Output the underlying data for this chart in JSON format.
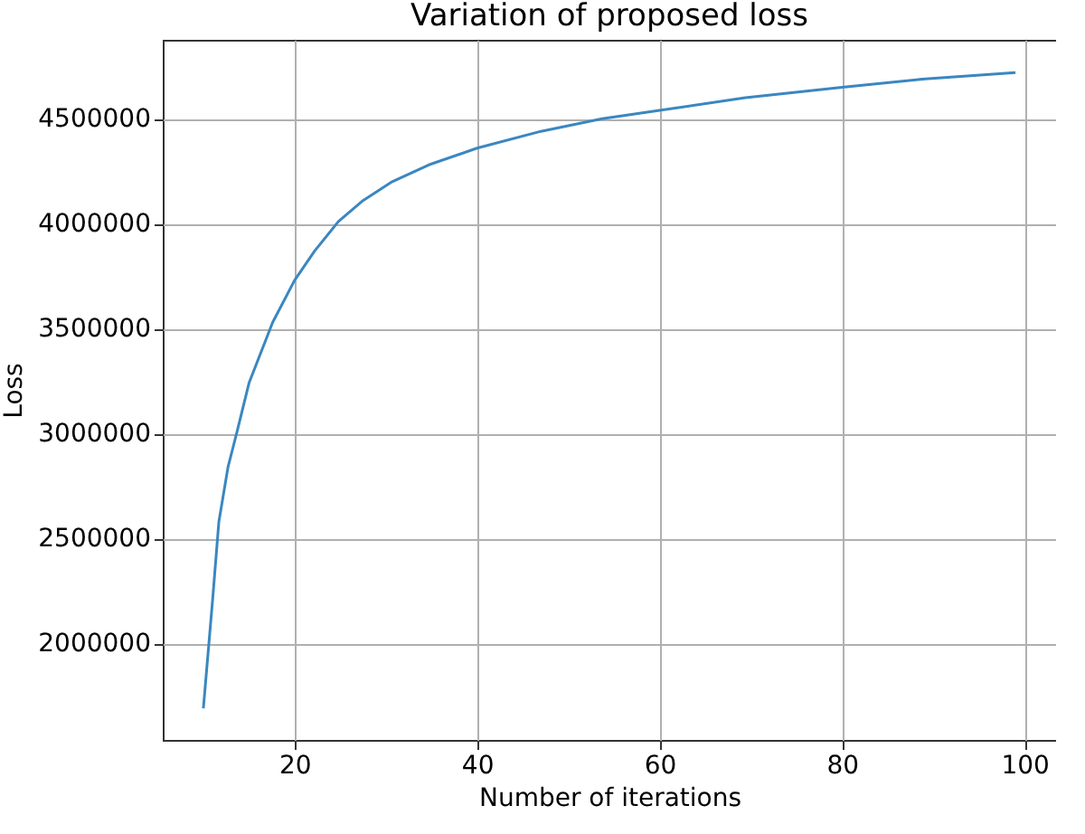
{
  "chart_data": {
    "type": "line",
    "title": "Variation of proposed loss",
    "xlabel": "Number of iterations",
    "ylabel": "Loss",
    "x": [
      10,
      11,
      11.7,
      12.7,
      13.7,
      15,
      17.6,
      20,
      22.2,
      24.8,
      27.5,
      30.7,
      34.7,
      40,
      47,
      53.7,
      60,
      69.4,
      80,
      89.1,
      99
    ],
    "series": [
      {
        "color": "#3a87c0",
        "values": [
          1690000,
          2200000,
          2580000,
          2840000,
          3010000,
          3240000,
          3530000,
          3730000,
          3870000,
          4010000,
          4110000,
          4200000,
          4280000,
          4360000,
          4440000,
          4500000,
          4540000,
          4600000,
          4650000,
          4690000,
          4720000
        ]
      }
    ],
    "xlim": [
      5.55,
      103.45
    ],
    "xticks": [
      20,
      40,
      60,
      80,
      100
    ],
    "ylim": [
      1540000,
      4876000
    ],
    "yticks": [
      2000000,
      2500000,
      3000000,
      3500000,
      4000000,
      4500000
    ],
    "grid": true,
    "line_style": "solid"
  }
}
